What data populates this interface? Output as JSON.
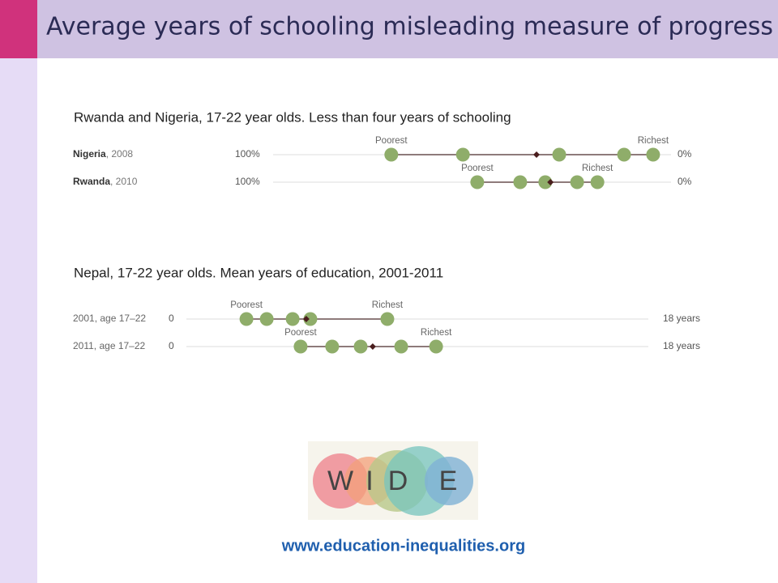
{
  "title": "Average years of schooling misleading measure of progress",
  "logo_letters": [
    "W",
    "I",
    "D",
    "E"
  ],
  "url": "www.education-inequalities.org",
  "chart_data": [
    {
      "type": "dot",
      "title": "Rwanda and Nigeria, 17-22 year olds. Less than four years of schooling",
      "annotations": [
        "Poorest",
        "Richest"
      ],
      "xlim": [
        100,
        0
      ],
      "xticks": [
        {
          "value": 100,
          "label": "100%"
        },
        {
          "value": 0,
          "label": "0%"
        }
      ],
      "color": "#8fad6a",
      "mean_color": "#4a1e1e",
      "series": [
        {
          "name": "Nigeria",
          "detail": ", 2008",
          "values": [
            70.3,
            52.3,
            28.1,
            11.8,
            4.5
          ],
          "mean": 33.8
        },
        {
          "name": "Rwanda",
          "detail": ", 2010",
          "values": [
            48.7,
            37.9,
            31.6,
            23.6,
            18.5
          ],
          "mean": 30.3
        }
      ]
    },
    {
      "type": "dot",
      "title": "Nepal, 17-22 year olds. Mean years of education, 2001-2011",
      "annotations": [
        "Poorest",
        "Richest"
      ],
      "xlim": [
        0,
        18
      ],
      "xticks": [
        0,
        {
          "value": 18,
          "label": "18 years"
        }
      ],
      "color": "#8fad6a",
      "mean_color": "#4a1e1e",
      "series": [
        {
          "name": "2001, age 17–22",
          "values": [
            2.34,
            3.13,
            4.14,
            4.83,
            7.83
          ],
          "mean": 4.67
        },
        {
          "name": "2011, age 17–22",
          "values": [
            4.45,
            5.68,
            6.79,
            8.37,
            9.73
          ],
          "mean": 7.26
        }
      ]
    }
  ]
}
